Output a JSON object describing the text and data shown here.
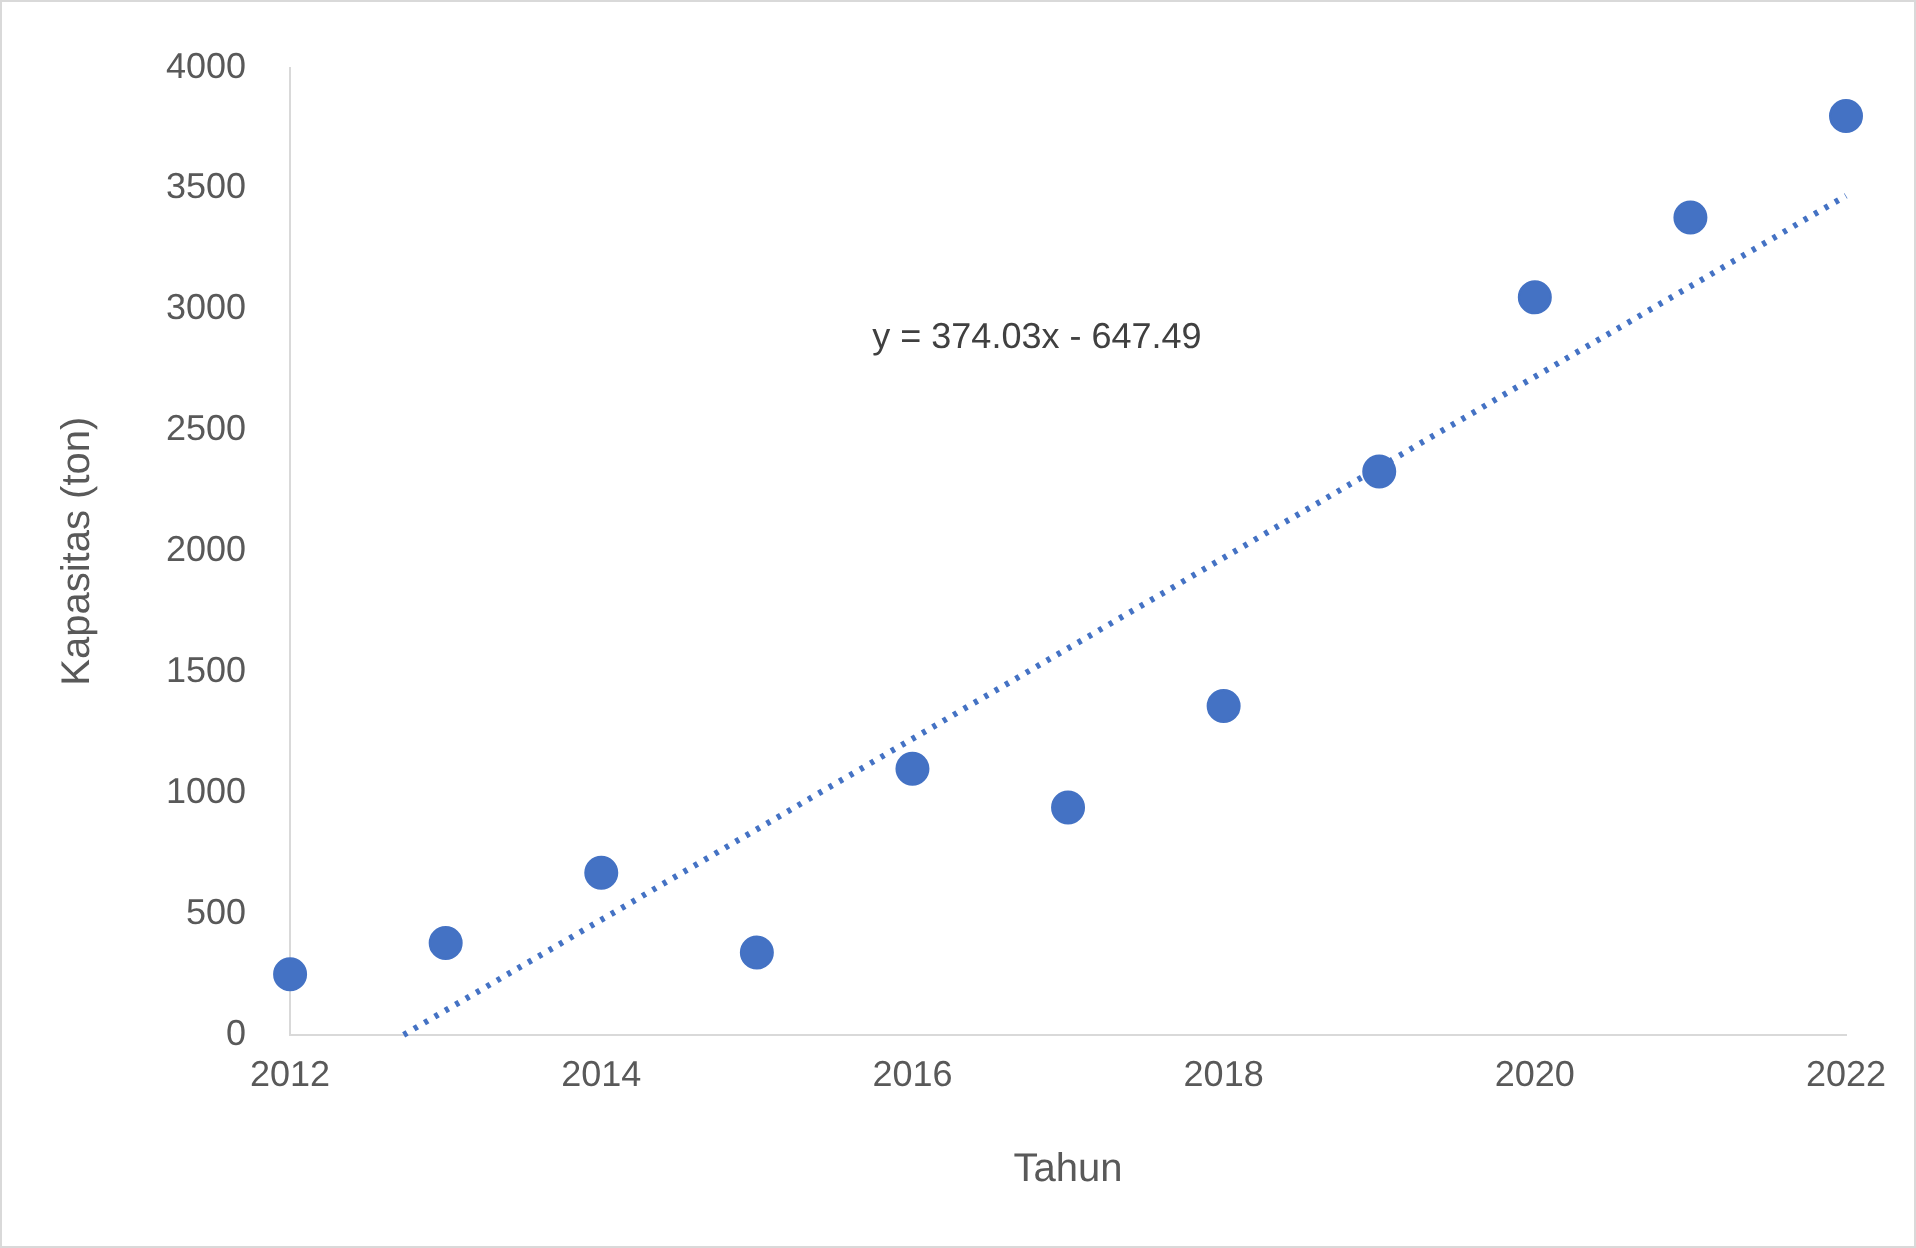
{
  "chart_data": {
    "type": "scatter",
    "xlabel": "Tahun",
    "ylabel": "Kapasitas (ton)",
    "x": [
      2012,
      2013,
      2014,
      2015,
      2016,
      2017,
      2018,
      2019,
      2020,
      2021,
      2022
    ],
    "series": [
      {
        "color": "#4472c4",
        "marker": "circle",
        "values": [
          250,
          380,
          670,
          340,
          1100,
          940,
          1360,
          2330,
          3050,
          3380,
          3800
        ]
      },
      {
        "type": "line",
        "color": "#4472c4",
        "line_style": "dotted",
        "marker": "none",
        "x": [
          2012.73,
          2022
        ],
        "values": [
          0,
          3470
        ]
      }
    ],
    "xlim": [
      2012,
      2022
    ],
    "xticks": [
      2012,
      2014,
      2016,
      2018,
      2020,
      2022
    ],
    "ylim": [
      0,
      4000
    ],
    "yticks": [
      0,
      500,
      1000,
      1500,
      2000,
      2500,
      3000,
      3500,
      4000
    ],
    "grid": false,
    "legend": false,
    "annotations": [
      "y = 374.03x - 647.49"
    ]
  }
}
